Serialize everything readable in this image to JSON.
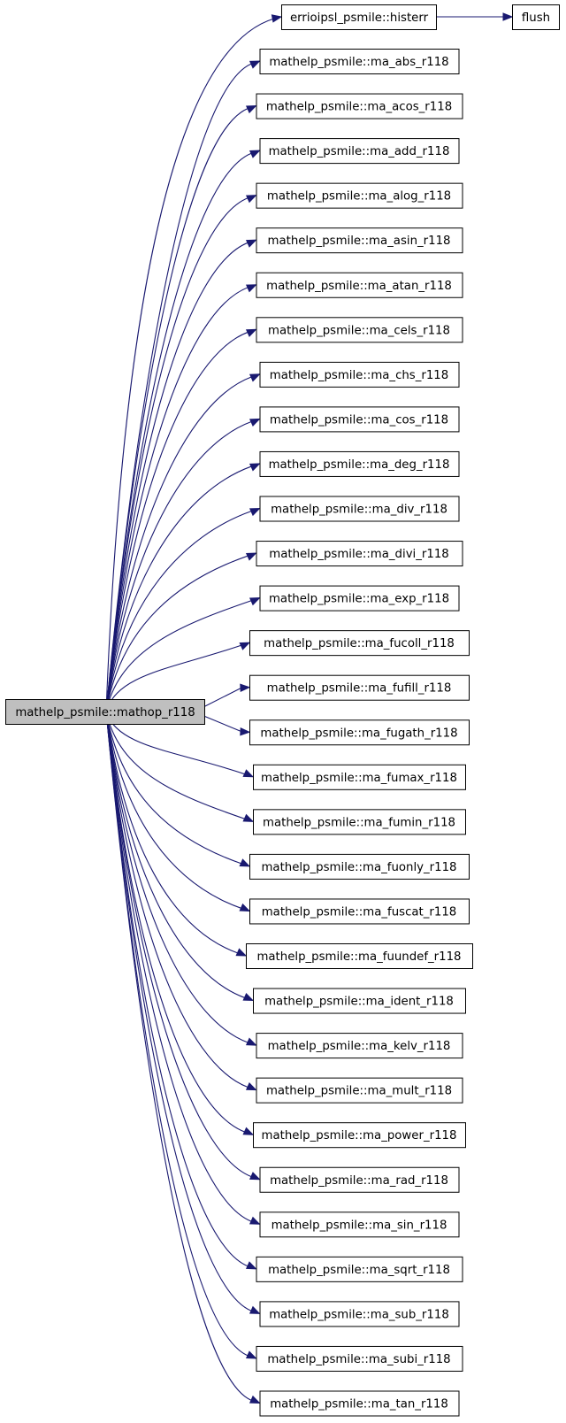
{
  "graph": {
    "root": "mathelp_psmile::mathop_r118",
    "histerr": "errioipsl_psmile::histerr",
    "flush": "flush",
    "callees": [
      "mathelp_psmile::ma_abs_r118",
      "mathelp_psmile::ma_acos_r118",
      "mathelp_psmile::ma_add_r118",
      "mathelp_psmile::ma_alog_r118",
      "mathelp_psmile::ma_asin_r118",
      "mathelp_psmile::ma_atan_r118",
      "mathelp_psmile::ma_cels_r118",
      "mathelp_psmile::ma_chs_r118",
      "mathelp_psmile::ma_cos_r118",
      "mathelp_psmile::ma_deg_r118",
      "mathelp_psmile::ma_div_r118",
      "mathelp_psmile::ma_divi_r118",
      "mathelp_psmile::ma_exp_r118",
      "mathelp_psmile::ma_fucoll_r118",
      "mathelp_psmile::ma_fufill_r118",
      "mathelp_psmile::ma_fugath_r118",
      "mathelp_psmile::ma_fumax_r118",
      "mathelp_psmile::ma_fumin_r118",
      "mathelp_psmile::ma_fuonly_r118",
      "mathelp_psmile::ma_fuscat_r118",
      "mathelp_psmile::ma_fuundef_r118",
      "mathelp_psmile::ma_ident_r118",
      "mathelp_psmile::ma_kelv_r118",
      "mathelp_psmile::ma_mult_r118",
      "mathelp_psmile::ma_power_r118",
      "mathelp_psmile::ma_rad_r118",
      "mathelp_psmile::ma_sin_r118",
      "mathelp_psmile::ma_sqrt_r118",
      "mathelp_psmile::ma_sub_r118",
      "mathelp_psmile::ma_subi_r118",
      "mathelp_psmile::ma_tan_r118"
    ]
  },
  "colors": {
    "edge": "#191970",
    "root_fill": "#bfbfbf",
    "node_fill": "#ffffff",
    "node_border": "#000000"
  }
}
